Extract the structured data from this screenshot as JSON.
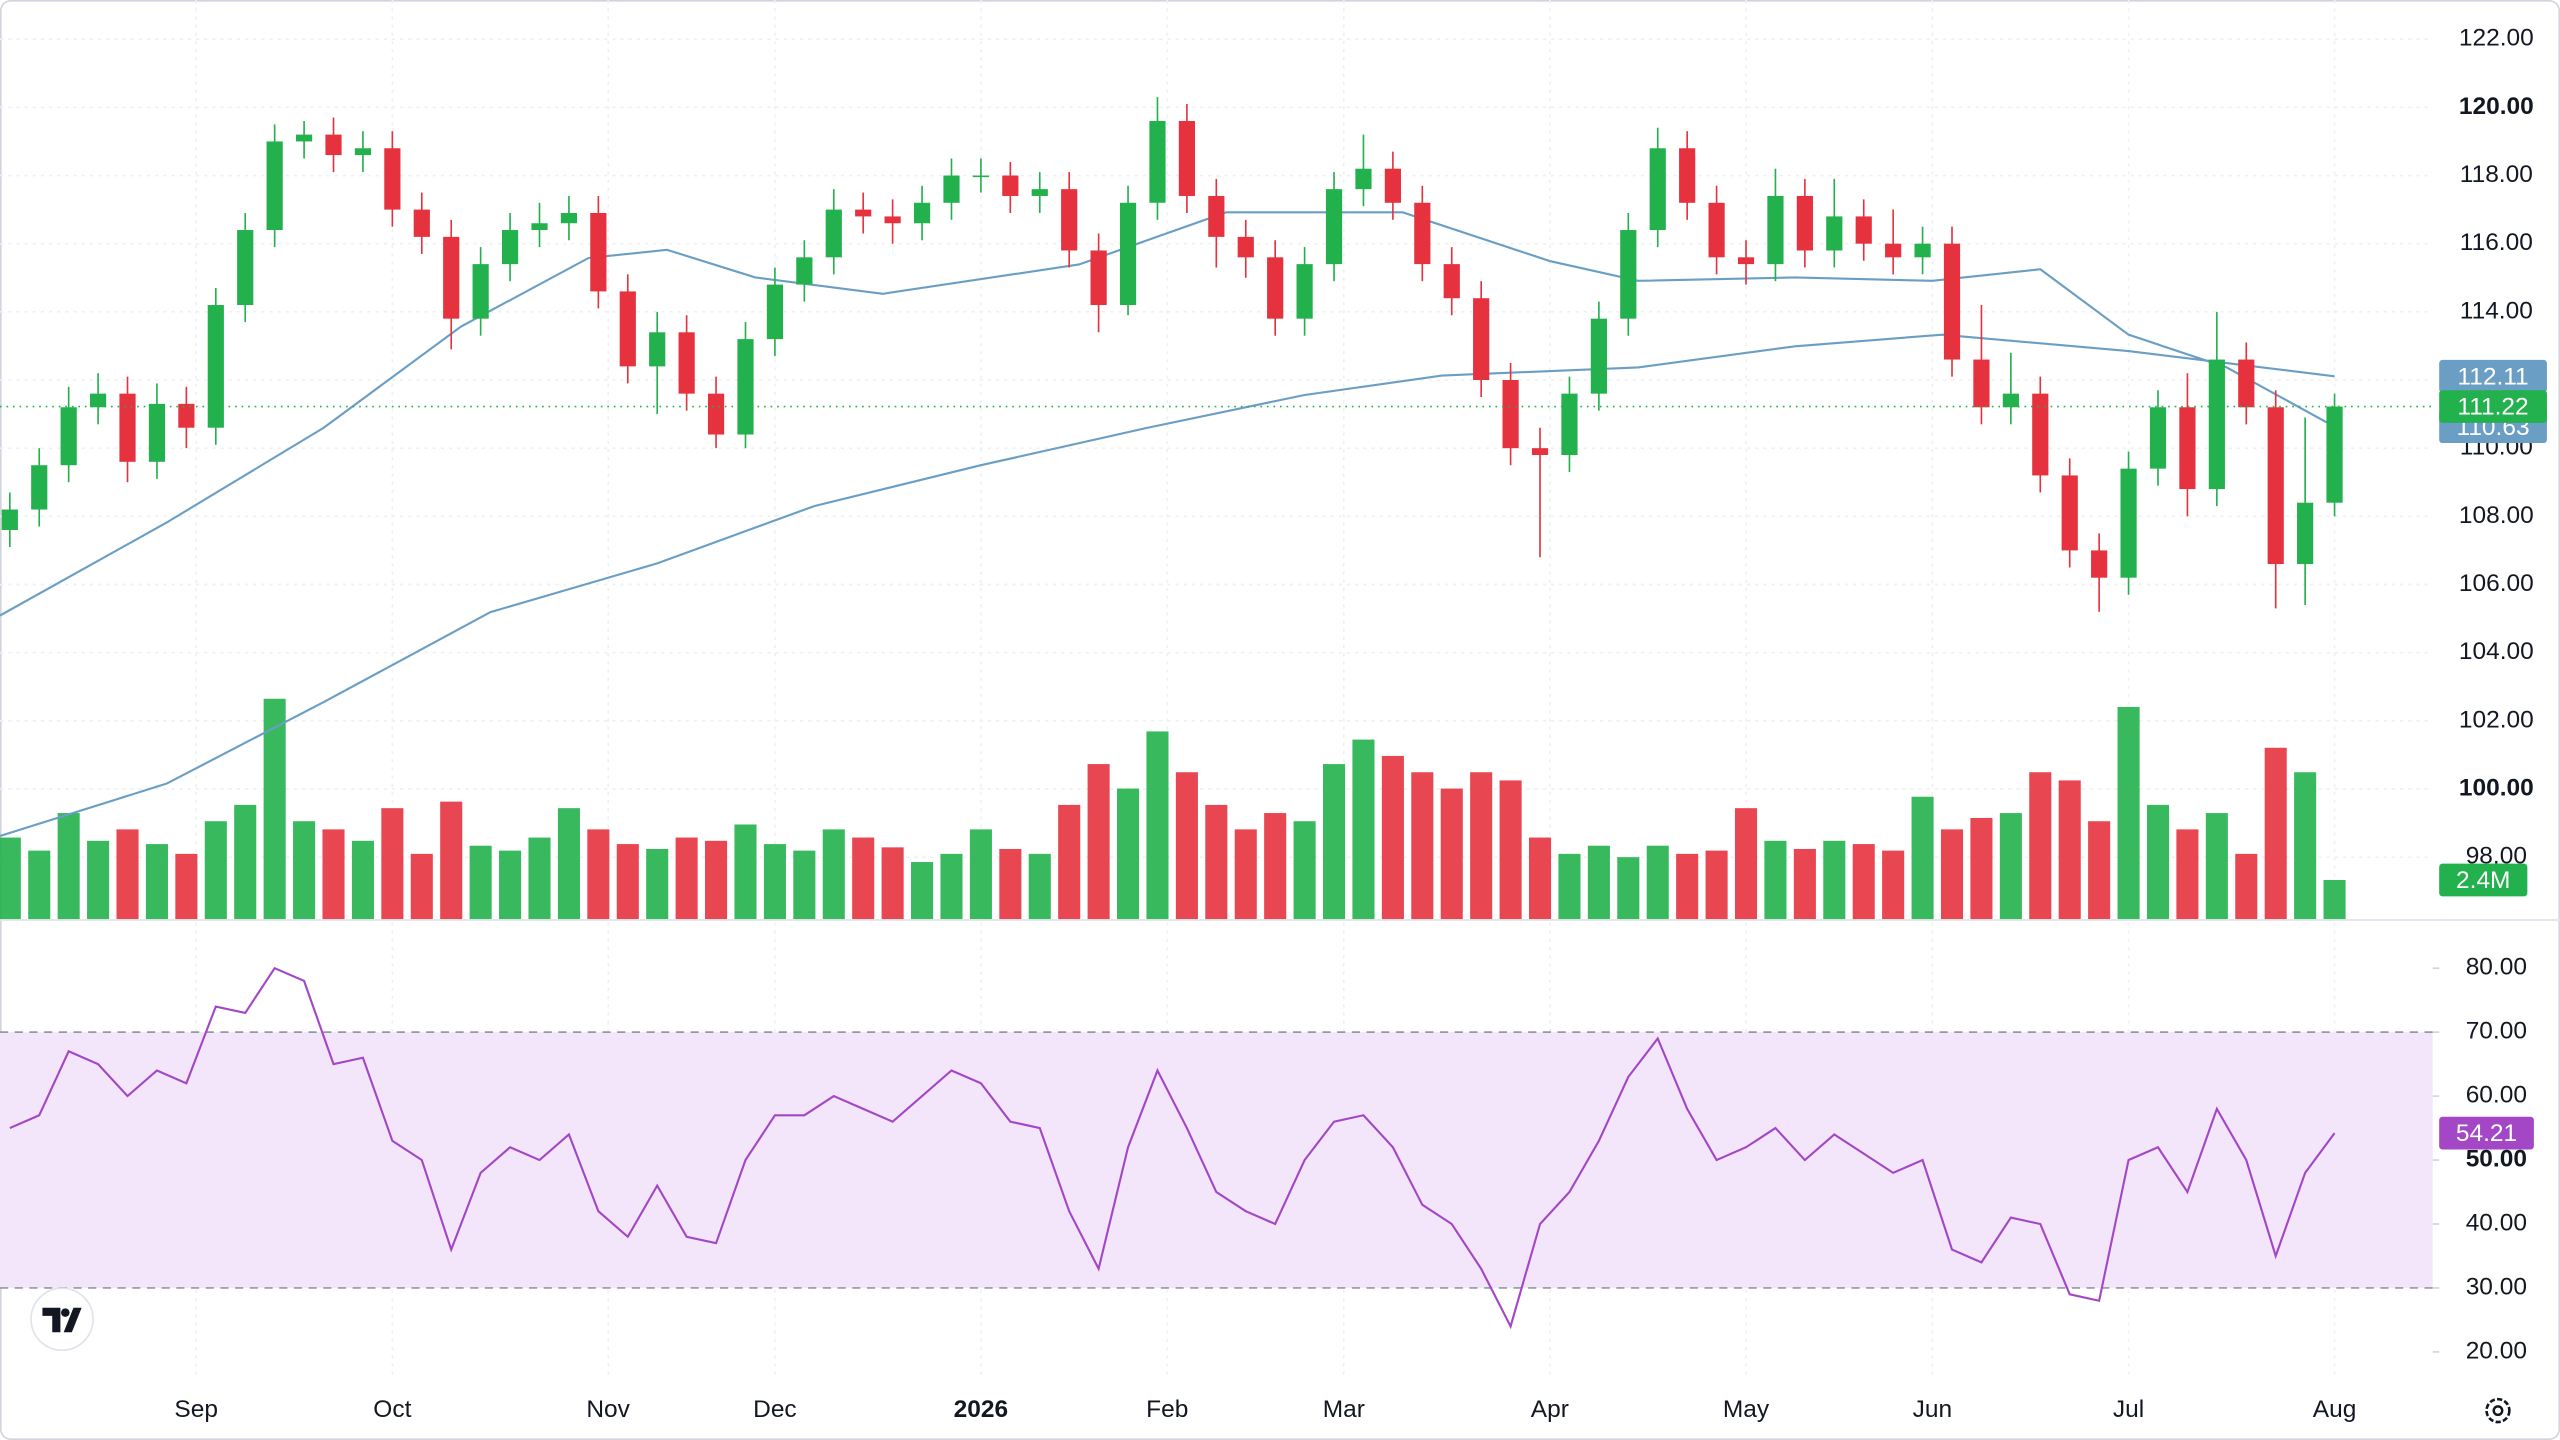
{
  "chart_data": {
    "type": "candlestick",
    "up_color": "#22b14c",
    "down_color": "#e5323e",
    "grid": true,
    "xlim": [
      0,
      248
    ],
    "xticks": [
      {
        "value": 20,
        "label": "Sep"
      },
      {
        "value": 40,
        "label": "Oct"
      },
      {
        "value": 62,
        "label": "Nov"
      },
      {
        "value": 79,
        "label": "Dec"
      },
      {
        "value": 100,
        "label": "2026",
        "bold": true
      },
      {
        "value": 119,
        "label": "Feb"
      },
      {
        "value": 137,
        "label": "Mar"
      },
      {
        "value": 158,
        "label": "Apr"
      },
      {
        "value": 178,
        "label": "May"
      },
      {
        "value": 197,
        "label": "Jun"
      },
      {
        "value": 217,
        "label": "Jul"
      },
      {
        "value": 238,
        "label": "Aug"
      }
    ],
    "ylim": [
      96.18,
      123.15
    ],
    "yticks": [
      {
        "value": 98,
        "label": "98.00"
      },
      {
        "value": 100,
        "label": "100.00",
        "bold": true
      },
      {
        "value": 102,
        "label": "102.00"
      },
      {
        "value": 104,
        "label": "104.00"
      },
      {
        "value": 106,
        "label": "106.00"
      },
      {
        "value": 108,
        "label": "108.00"
      },
      {
        "value": 110,
        "label": "110.00"
      },
      {
        "value": 112,
        "label": "112.00"
      },
      {
        "value": 114,
        "label": "114.00"
      },
      {
        "value": 116,
        "label": "116.00"
      },
      {
        "value": 118,
        "label": "118.00"
      },
      {
        "value": 120,
        "label": "120.00",
        "bold": true
      },
      {
        "value": 122,
        "label": "122.00"
      }
    ],
    "x": [
      1,
      4,
      7,
      10,
      13,
      16,
      19,
      22,
      25,
      28,
      31,
      34,
      37,
      40,
      43,
      46,
      49,
      52,
      55,
      58,
      61,
      64,
      67,
      70,
      73,
      76,
      79,
      82,
      85,
      88,
      91,
      94,
      97,
      100,
      103,
      106,
      109,
      112,
      115,
      118,
      121,
      124,
      127,
      130,
      133,
      136,
      139,
      142,
      145,
      148,
      151,
      154,
      157,
      160,
      163,
      166,
      169,
      172,
      175,
      178,
      181,
      184,
      187,
      190,
      193,
      196,
      199,
      202,
      205,
      208,
      211,
      214,
      217,
      220,
      223,
      226,
      229,
      232,
      235,
      238
    ],
    "open": [
      107.6,
      108.2,
      109.5,
      111.2,
      111.6,
      109.6,
      111.3,
      110.6,
      114.2,
      116.4,
      119.0,
      119.2,
      118.6,
      118.8,
      117.0,
      116.2,
      113.8,
      115.4,
      116.4,
      116.6,
      116.9,
      114.6,
      112.4,
      113.4,
      111.6,
      110.4,
      113.2,
      114.8,
      115.6,
      117.0,
      116.8,
      116.6,
      117.2,
      118.0,
      118.0,
      117.4,
      117.6,
      115.8,
      114.2,
      117.2,
      119.6,
      117.4,
      116.2,
      115.6,
      113.8,
      115.4,
      117.6,
      118.2,
      117.2,
      115.4,
      114.4,
      112.0,
      110.0,
      109.8,
      111.6,
      113.8,
      116.4,
      118.8,
      117.2,
      115.6,
      115.4,
      117.4,
      115.8,
      116.8,
      116.0,
      115.6,
      116.0,
      112.6,
      111.2,
      111.6,
      109.2,
      107.0,
      106.2,
      109.4,
      111.2,
      108.8,
      112.6,
      111.2,
      106.6,
      108.4
    ],
    "high": [
      108.7,
      110.0,
      111.8,
      112.2,
      112.1,
      111.9,
      111.8,
      114.7,
      116.9,
      119.5,
      119.6,
      119.7,
      119.3,
      119.3,
      117.5,
      116.7,
      115.9,
      116.9,
      117.2,
      117.4,
      117.4,
      115.1,
      114.0,
      113.9,
      112.1,
      113.7,
      115.3,
      116.1,
      117.6,
      117.5,
      117.3,
      117.7,
      118.5,
      118.5,
      118.4,
      118.1,
      118.1,
      116.3,
      117.7,
      120.3,
      120.1,
      117.9,
      116.7,
      116.1,
      115.9,
      118.1,
      119.2,
      118.7,
      117.7,
      115.9,
      114.9,
      112.5,
      110.6,
      112.1,
      114.3,
      116.9,
      119.4,
      119.3,
      117.7,
      116.1,
      118.2,
      117.9,
      117.9,
      117.3,
      117.0,
      116.5,
      116.5,
      114.2,
      112.8,
      112.1,
      109.7,
      107.5,
      109.9,
      111.7,
      112.2,
      114.0,
      113.1,
      111.7,
      110.9,
      111.6
    ],
    "low": [
      107.1,
      107.7,
      109.0,
      110.7,
      109.0,
      109.1,
      110.0,
      110.1,
      113.7,
      115.9,
      118.5,
      118.1,
      118.1,
      116.5,
      115.7,
      112.9,
      113.3,
      114.9,
      115.9,
      116.1,
      114.1,
      111.9,
      111.0,
      111.1,
      110.0,
      110.0,
      112.7,
      114.3,
      115.1,
      116.3,
      116.0,
      116.1,
      116.7,
      117.5,
      116.9,
      116.9,
      115.3,
      113.4,
      113.9,
      116.7,
      116.9,
      115.3,
      115.0,
      113.3,
      113.3,
      114.9,
      117.1,
      116.7,
      114.9,
      113.9,
      111.5,
      109.5,
      106.8,
      109.3,
      111.1,
      113.3,
      115.9,
      116.7,
      115.1,
      114.8,
      114.9,
      115.3,
      115.3,
      115.5,
      115.1,
      115.1,
      112.1,
      110.7,
      110.7,
      108.7,
      106.5,
      105.2,
      105.7,
      108.9,
      108.0,
      108.3,
      110.7,
      105.3,
      105.4,
      108.0
    ],
    "close": [
      108.2,
      109.5,
      111.2,
      111.6,
      109.6,
      111.3,
      110.6,
      114.2,
      116.4,
      119.0,
      119.2,
      118.6,
      118.8,
      117.0,
      116.2,
      113.8,
      115.4,
      116.4,
      116.6,
      116.9,
      114.6,
      112.4,
      113.4,
      111.6,
      110.4,
      113.2,
      114.8,
      115.6,
      117.0,
      116.8,
      116.6,
      117.2,
      118.0,
      118.0,
      117.4,
      117.6,
      115.8,
      114.2,
      117.2,
      119.6,
      117.4,
      116.2,
      115.6,
      113.8,
      115.4,
      117.6,
      118.2,
      117.2,
      115.4,
      114.4,
      112.0,
      110.0,
      109.8,
      111.6,
      113.8,
      116.4,
      118.8,
      117.2,
      115.6,
      115.4,
      117.4,
      115.8,
      116.8,
      116.0,
      115.6,
      116.0,
      112.6,
      111.2,
      111.6,
      109.2,
      107.0,
      106.2,
      109.4,
      111.2,
      108.8,
      112.6,
      111.2,
      106.6,
      108.4,
      111.22
    ],
    "last_line_color": "#22b14c",
    "volume": {
      "ylim": [
        0,
        56.3
      ],
      "values": [
        5.0,
        4.2,
        6.5,
        4.8,
        5.5,
        4.6,
        4.0,
        6.0,
        7.0,
        13.5,
        6.0,
        5.5,
        4.8,
        6.8,
        4.0,
        7.2,
        4.5,
        4.2,
        5.0,
        6.8,
        5.5,
        4.6,
        4.3,
        5.0,
        4.8,
        5.8,
        4.6,
        4.2,
        5.5,
        5.0,
        4.4,
        3.5,
        4.0,
        5.5,
        4.3,
        4.0,
        7.0,
        9.5,
        8.0,
        11.5,
        9.0,
        7.0,
        5.5,
        6.5,
        6.0,
        9.5,
        11.0,
        10.0,
        9.0,
        8.0,
        9.0,
        8.5,
        5.0,
        4.0,
        4.5,
        3.8,
        4.5,
        4.0,
        4.2,
        6.8,
        4.8,
        4.3,
        4.8,
        4.6,
        4.2,
        7.5,
        5.5,
        6.2,
        6.5,
        9.0,
        8.5,
        6.0,
        13.0,
        7.0,
        5.5,
        6.5,
        4.0,
        10.5,
        9.0,
        2.4
      ],
      "last_label": "2.4M"
    },
    "moving_averages": [
      {
        "color": "#6a9ec4",
        "x": [
          0,
          17,
          33,
          47,
          60,
          68,
          77,
          90,
          110,
          125,
          143,
          158,
          167,
          183,
          197,
          208,
          217,
          227,
          238
        ],
        "values": [
          105.09,
          107.82,
          110.6,
          113.57,
          115.58,
          115.82,
          115.01,
          114.53,
          115.39,
          116.92,
          116.92,
          115.49,
          114.91,
          115.01,
          114.91,
          115.25,
          113.33,
          112.37,
          110.63
        ]
      },
      {
        "color": "#6a9ec4",
        "x": [
          0,
          17,
          33,
          50,
          67,
          83,
          100,
          117,
          133,
          147,
          167,
          183,
          198,
          217,
          238
        ],
        "values": [
          98.62,
          100.16,
          102.55,
          105.19,
          106.62,
          108.3,
          109.5,
          110.6,
          111.56,
          112.13,
          112.37,
          112.99,
          113.33,
          112.85,
          112.11
        ]
      }
    ],
    "rsi": {
      "color": "#a347c7",
      "band_color": "#f3e6fb",
      "band": [
        30,
        70
      ],
      "ylim": [
        15.67,
        87.66
      ],
      "yticks": [
        {
          "value": 20,
          "label": "20.00"
        },
        {
          "value": 30,
          "label": "30.00"
        },
        {
          "value": 40,
          "label": "40.00"
        },
        {
          "value": 50,
          "label": "50.00",
          "bold": true
        },
        {
          "value": 60,
          "label": "60.00"
        },
        {
          "value": 70,
          "label": "70.00"
        },
        {
          "value": 80,
          "label": "80.00"
        }
      ],
      "values": [
        55,
        57,
        67,
        65,
        60,
        64,
        62,
        74,
        73,
        80,
        78,
        65,
        66,
        53,
        50,
        36,
        48,
        52,
        50,
        54,
        42,
        38,
        46,
        38,
        37,
        50,
        57,
        57,
        60,
        58,
        56,
        60,
        64,
        62,
        56,
        55,
        42,
        33,
        52,
        64,
        55,
        45,
        42,
        40,
        50,
        56,
        57,
        52,
        43,
        40,
        33,
        24,
        40,
        45,
        53,
        63,
        69,
        58,
        50,
        52,
        55,
        50,
        54,
        51,
        48,
        50,
        36,
        34,
        41,
        40,
        29,
        28,
        50,
        52,
        45,
        58,
        50,
        35,
        48,
        54.21
      ]
    }
  }
}
